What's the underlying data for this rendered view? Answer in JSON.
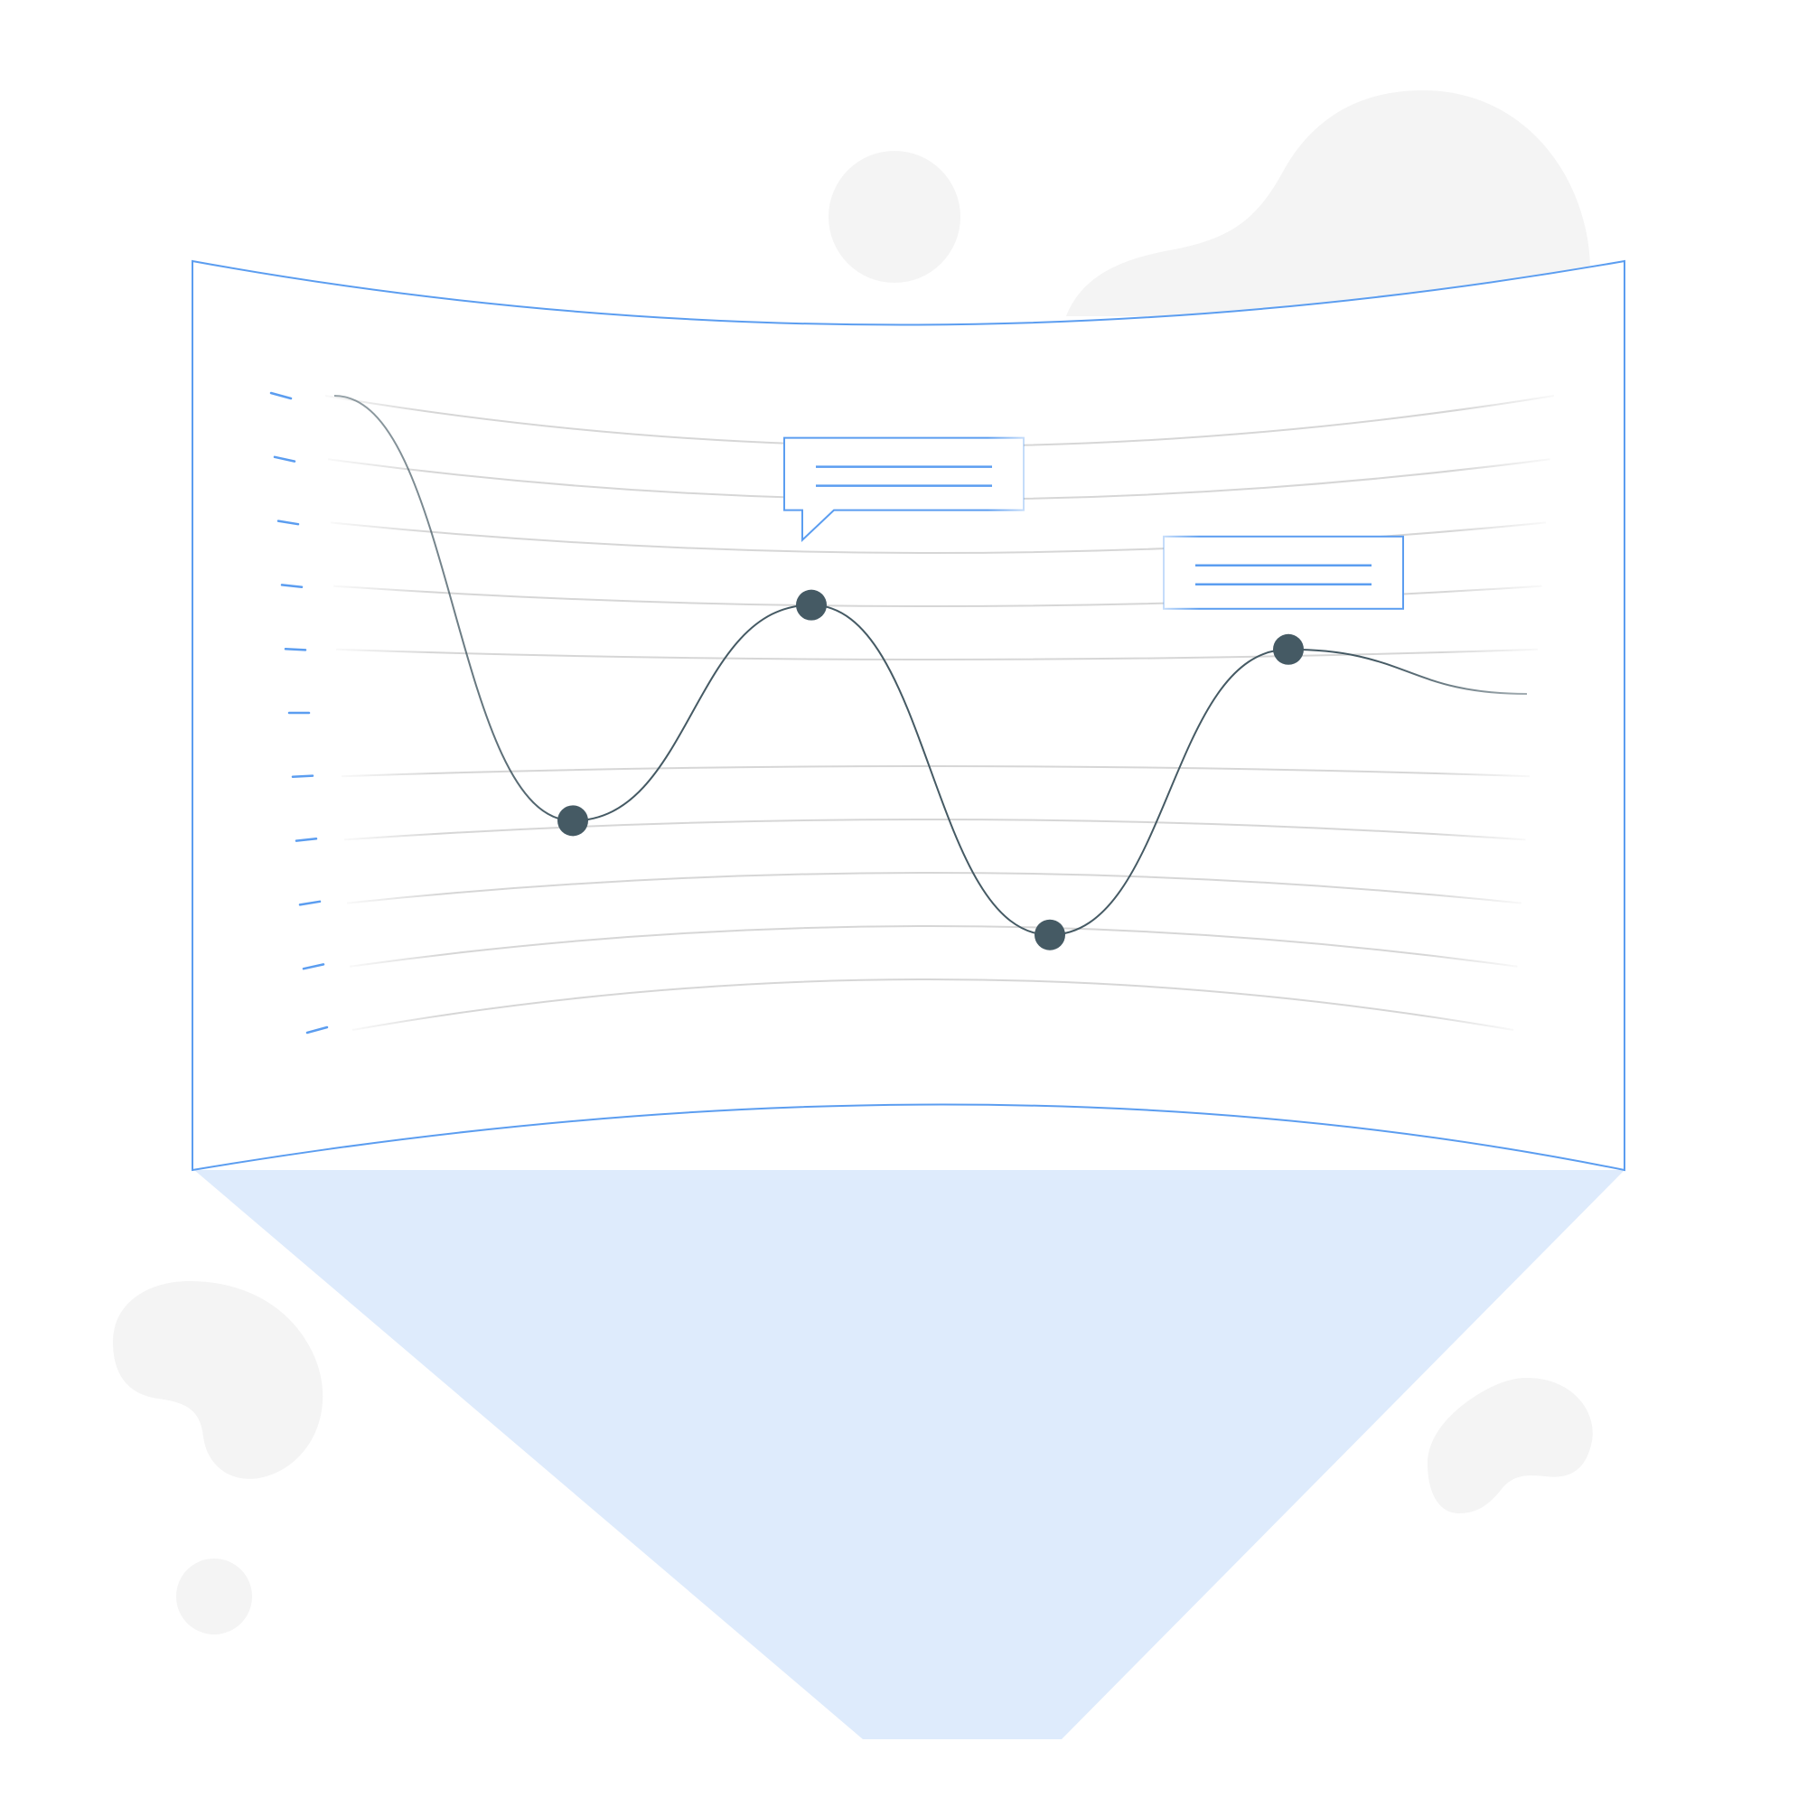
{
  "colors": {
    "accent": "#5b9df0",
    "accent_light": "#deebfc",
    "line": "#455a64",
    "point": "#455a64",
    "grid": "#d6d6d6",
    "blob": "#f4f4f4"
  },
  "chart_data": {
    "type": "line",
    "title": "",
    "xlabel": "",
    "ylabel": "",
    "ylim": [
      0,
      10
    ],
    "grid": true,
    "legend": "none",
    "series": [
      {
        "x": [
          0,
          1,
          2,
          3,
          4,
          5
        ],
        "values": [
          10,
          3.3,
          6.7,
          1.5,
          6.0,
          5.3
        ],
        "markers": [
          false,
          true,
          true,
          true,
          true,
          false
        ]
      }
    ],
    "callouts": [
      {
        "type": "speech-bubble",
        "point_index": 2
      },
      {
        "type": "label-box",
        "point_index": 4
      }
    ]
  }
}
